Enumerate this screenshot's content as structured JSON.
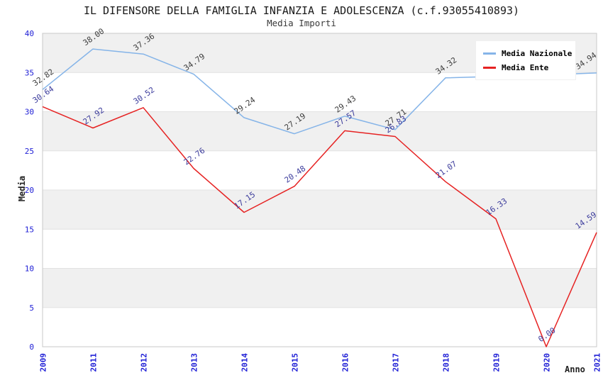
{
  "chart_data": {
    "type": "line",
    "title": "IL DIFENSORE DELLA FAMIGLIA INFANZIA E ADOLESCENZA (c.f.93055410893)",
    "subtitle": "Media Importi",
    "xlabel": "Anno",
    "ylabel": "Media",
    "ylim": [
      0,
      40
    ],
    "yticks": [
      0,
      5,
      10,
      15,
      20,
      25,
      30,
      35,
      40
    ],
    "legend_position": "top-right",
    "grid": "horizontal gridlines every 5 units with alternating gray/white bands",
    "categories": [
      "2009",
      "2011",
      "2012",
      "2013",
      "2014",
      "2015",
      "2016",
      "2017",
      "2018",
      "2019",
      "2020",
      "2021"
    ],
    "series": [
      {
        "name": "Media Nazionale",
        "color": "#85b4e8",
        "label_color": "#3d3d3d",
        "values": [
          32.82,
          38.0,
          37.36,
          34.79,
          29.24,
          27.19,
          29.43,
          27.71,
          34.32,
          34.5,
          34.7,
          34.94
        ],
        "labels": [
          "32.82",
          "38.00",
          "37.36",
          "34.79",
          "29.24",
          "27.19",
          "29.43",
          "27.71",
          "34.32",
          "",
          "",
          "34.94"
        ]
      },
      {
        "name": "Media Ente",
        "color": "#e62222",
        "label_color": "#3c3c9c",
        "values": [
          30.64,
          27.92,
          30.52,
          22.76,
          17.15,
          20.48,
          27.57,
          26.83,
          21.07,
          16.33,
          0.0,
          14.59
        ],
        "labels": [
          "30.64",
          "27.92",
          "30.52",
          "22.76",
          "17.15",
          "20.48",
          "27.57",
          "26.83",
          "21.07",
          "16.33",
          "0.00",
          "14.59"
        ]
      }
    ],
    "colors": {
      "axis_tick_labels": "#2020d6",
      "band_gray": "#f0f0f0",
      "band_white": "#ffffff",
      "grid_line": "#e2e2e2",
      "plot_border": "#c8c8c8",
      "title_text": "#1a1a1a",
      "subtitle_text": "#3a3a3a"
    }
  }
}
